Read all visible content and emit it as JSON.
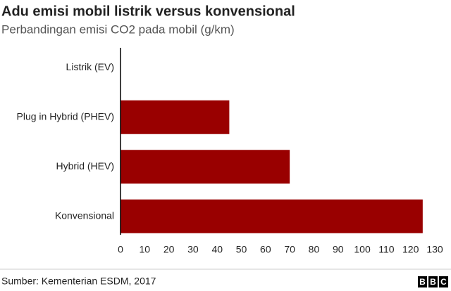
{
  "chart_data": {
    "type": "bar",
    "orientation": "horizontal",
    "title": "Adu emisi mobil listrik versus konvensional",
    "subtitle": "Perbandingan emisi CO2 pada mobil (g/km)",
    "categories": [
      "Listrik (EV)",
      "Plug in Hybrid (PHEV)",
      "Hybrid (HEV)",
      "Konvensional"
    ],
    "values": [
      0,
      45,
      70,
      125
    ],
    "color": "#990000",
    "xlim": [
      0,
      130
    ],
    "xticks": [
      0,
      10,
      20,
      30,
      40,
      50,
      60,
      70,
      80,
      90,
      100,
      110,
      120,
      130
    ],
    "grid": false,
    "source": "Sumber: Kementerian ESDM, 2017"
  },
  "logo": [
    "B",
    "B",
    "C"
  ]
}
